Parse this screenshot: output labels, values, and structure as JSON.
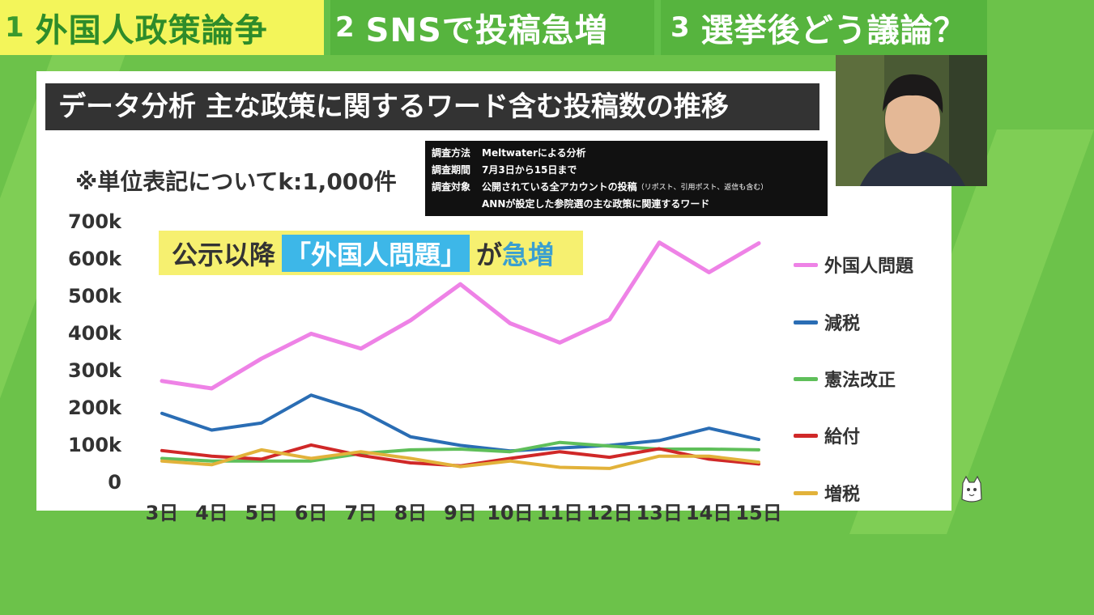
{
  "tabs": [
    {
      "num": "1",
      "label": "外国人政策論争"
    },
    {
      "num": "2",
      "label": "SNSで投稿急増"
    },
    {
      "num": "3",
      "label": "選挙後どう議論？"
    }
  ],
  "title": "データ分析 主な政策に関するワード含む投稿数の推移",
  "unit_note": "※単位表記についてk:1,000件",
  "method": {
    "rows": [
      {
        "k": "調査方法",
        "v": "Meltwaterによる分析"
      },
      {
        "k": "調査期間",
        "v": "7月3日から15日まで"
      },
      {
        "k": "調査対象",
        "v": "公開されている全アカウントの投稿",
        "small": "（リポスト、引用ポスト、返信も含む）"
      },
      {
        "k": "",
        "v": "ANNが設定した参院選の主な政策に関連するワード"
      }
    ]
  },
  "callout": {
    "pre": "公示以降",
    "highlight": "「外国人問題」",
    "mid": "が",
    "post": "急増"
  },
  "chart_data": {
    "type": "line",
    "categories": [
      "3日",
      "4日",
      "5日",
      "6日",
      "7日",
      "8日",
      "9日",
      "10日",
      "11日",
      "12日",
      "13日",
      "14日",
      "15日"
    ],
    "y_ticks": [
      "0",
      "100k",
      "200k",
      "300k",
      "400k",
      "500k",
      "600k",
      "700k"
    ],
    "ylim": [
      0,
      700
    ],
    "series": [
      {
        "name": "外国人問題",
        "color": "#ee82e6",
        "values": [
          270,
          250,
          330,
          397,
          357,
          433,
          530,
          425,
          373,
          435,
          642,
          562,
          640
        ]
      },
      {
        "name": "減税",
        "color": "#2a6db4",
        "values": [
          183,
          138,
          157,
          232,
          190,
          120,
          97,
          82,
          90,
          97,
          110,
          143,
          113
        ]
      },
      {
        "name": "憲法改正",
        "color": "#5fbf5a",
        "values": [
          62,
          55,
          55,
          55,
          75,
          85,
          87,
          80,
          105,
          95,
          87,
          87,
          85
        ]
      },
      {
        "name": "給付",
        "color": "#d02828",
        "values": [
          83,
          68,
          60,
          98,
          70,
          50,
          42,
          62,
          80,
          65,
          88,
          60,
          47
        ]
      },
      {
        "name": "増税",
        "color": "#e2b23a",
        "values": [
          55,
          45,
          85,
          62,
          80,
          62,
          40,
          55,
          38,
          35,
          68,
          68,
          52
        ]
      }
    ]
  }
}
